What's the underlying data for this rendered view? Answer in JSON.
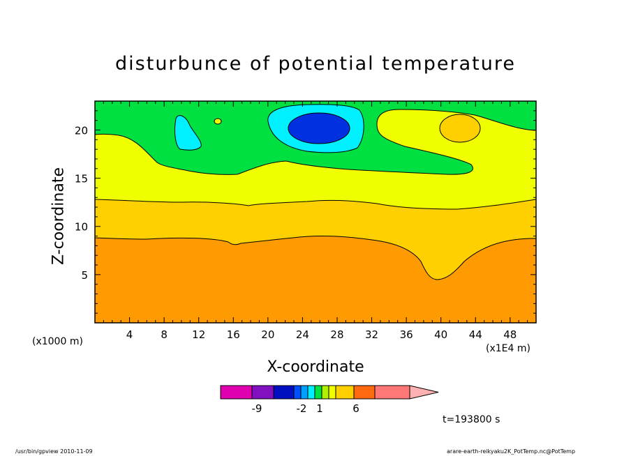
{
  "title": "disturbunce of potential temperature",
  "footer": {
    "left": "/usr/bin/gpview   2010-11-09",
    "right": "arare-earth-reikyaku2K_PotTemp.nc@PotTemp"
  },
  "time_label": "t=193800 s",
  "colors": {
    "level_colors": [
      "#e000b0",
      "#8010c0",
      "#0010c0",
      "#0050ff",
      "#00a0ff",
      "#00f0ff",
      "#00e040",
      "#b0f000",
      "#f0ff00",
      "#ffd000",
      "#ff9a00",
      "#ff6a10",
      "#ff1a1a",
      "#ff7878",
      "#ffb0b0"
    ],
    "plot_fills": {
      "band_below_10": "#ff9a00",
      "band_10": "#ffd000",
      "band_13": "#f0ff00",
      "band_16": "#00e040",
      "band_cyan": "#00f0ff",
      "band_blue": "#0030e0"
    }
  },
  "chart_data": {
    "type": "contour-filled",
    "title": "disturbunce of potential temperature",
    "xlabel": "X-coordinate",
    "ylabel": "Z-coordinate",
    "x_unit_left": "(x1000 m)",
    "x_unit_right": "(x1E4 m)",
    "xlim": [
      0,
      51
    ],
    "ylim": [
      0,
      23
    ],
    "x_ticks": [
      4,
      8,
      12,
      16,
      20,
      24,
      28,
      32,
      36,
      40,
      44,
      48
    ],
    "y_ticks": [
      5,
      10,
      15,
      20
    ],
    "colorbar": {
      "tick_labels": [
        "-9",
        "-2",
        "1",
        "6"
      ]
    }
  }
}
